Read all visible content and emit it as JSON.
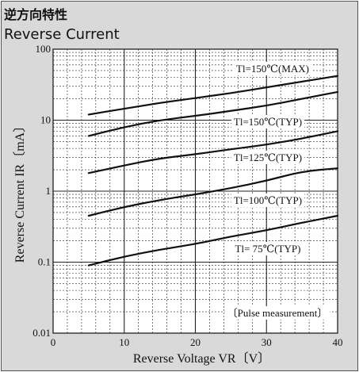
{
  "header": {
    "title_jp": "逆方向特性",
    "title_en": "Reverse Current"
  },
  "chart_data": {
    "type": "line",
    "title": "Reverse Current",
    "xlabel": "Reverse Voltage  VR〔V〕",
    "ylabel": "Reverse Current  IR〔mA〕",
    "xlim": [
      0,
      40
    ],
    "ylim": [
      0.01,
      100
    ],
    "yscale": "log",
    "grid": true,
    "x_ticks": [
      "0",
      "10",
      "20",
      "30",
      "40"
    ],
    "y_ticks": [
      "0.01",
      "0.1",
      "1",
      "10",
      "100"
    ],
    "annotation": "〔Pulse measurement〕",
    "series": [
      {
        "name": "Tl=150℃(MAX)",
        "x": [
          5,
          10,
          15,
          20,
          25,
          30,
          35,
          40
        ],
        "values": [
          12,
          14.5,
          17.5,
          20.5,
          24,
          29,
          35,
          42
        ]
      },
      {
        "name": "Tl=150℃(TYP)",
        "x": [
          5,
          10,
          15,
          20,
          25,
          30,
          35,
          40
        ],
        "values": [
          6,
          8,
          10,
          11.5,
          13.5,
          16,
          20,
          25
        ]
      },
      {
        "name": "Tl=125℃(TYP)",
        "x": [
          5,
          10,
          15,
          20,
          25,
          30,
          35,
          40
        ],
        "values": [
          1.8,
          2.3,
          2.9,
          3.3,
          3.9,
          4.5,
          5.5,
          7
        ]
      },
      {
        "name": "Tl=100℃(TYP)",
        "x": [
          5,
          10,
          15,
          20,
          25,
          30,
          35,
          40
        ],
        "values": [
          0.45,
          0.6,
          0.75,
          0.9,
          1.1,
          1.4,
          1.9,
          2.1
        ]
      },
      {
        "name": "Tl= 75℃(TYP)",
        "x": [
          5,
          10,
          15,
          20,
          25,
          30,
          35,
          40
        ],
        "values": [
          0.09,
          0.12,
          0.15,
          0.18,
          0.23,
          0.28,
          0.36,
          0.45
        ]
      }
    ]
  }
}
